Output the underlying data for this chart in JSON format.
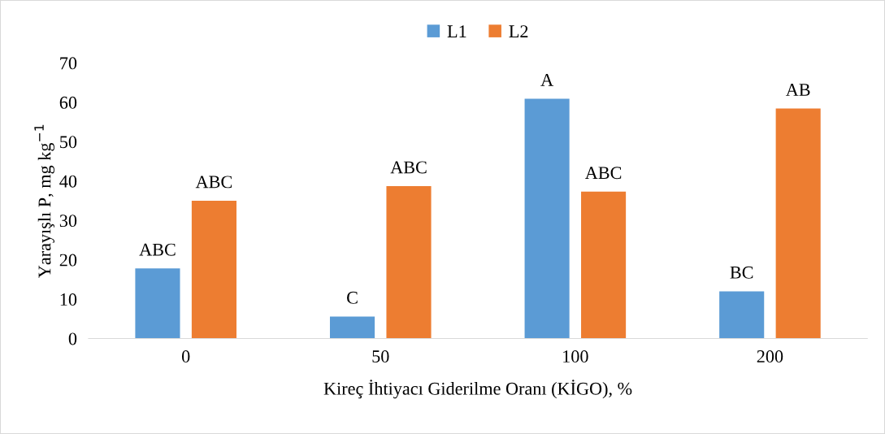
{
  "chart_data": {
    "type": "bar",
    "xlabel": "Kireç İhtiyacı Giderilme Oranı (KİGO), %",
    "ylabel": "Yarayışlı P, mg kg$^{−1}$",
    "categories": [
      "0",
      "50",
      "100",
      "200"
    ],
    "series": [
      {
        "name": "L1",
        "color": "#5b9bd5",
        "values": [
          17.8,
          5.6,
          60.9,
          12.0
        ],
        "value_labels": [
          "ABC",
          "C",
          "A",
          "BC"
        ]
      },
      {
        "name": "L2",
        "color": "#ed7d31",
        "values": [
          35.0,
          38.7,
          37.3,
          58.4
        ],
        "value_labels": [
          "ABC",
          "ABC",
          "ABC",
          "AB"
        ]
      }
    ],
    "ylim": [
      0,
      70
    ],
    "yticks": [
      0,
      10,
      20,
      30,
      40,
      50,
      60,
      70
    ],
    "grid": false,
    "legend": "top"
  }
}
